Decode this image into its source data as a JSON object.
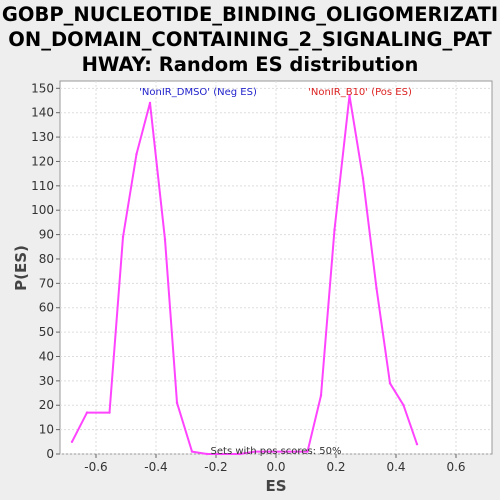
{
  "chart_data": {
    "type": "line",
    "title_lines": [
      "GOBP_NUCLEOTIDE_BINDING_OLIGOMERIZATI",
      "ON_DOMAIN_CONTAINING_2_SIGNALING_PAT",
      "HWAY: Random ES distribution"
    ],
    "xlabel": "ES",
    "ylabel": "P(ES)",
    "xlim": [
      -0.72,
      0.72
    ],
    "ylim": [
      0,
      153
    ],
    "x_ticks": [
      "-0.6",
      "-0.4",
      "-0.2",
      "0.0",
      "0.2",
      "0.4",
      "0.6"
    ],
    "x_tick_values": [
      -0.6,
      -0.4,
      -0.2,
      0.0,
      0.2,
      0.4,
      0.6
    ],
    "y_ticks": [
      "0",
      "10",
      "20",
      "30",
      "40",
      "50",
      "60",
      "70",
      "80",
      "90",
      "100",
      "110",
      "120",
      "130",
      "140",
      "150"
    ],
    "y_tick_values": [
      0,
      10,
      20,
      30,
      40,
      50,
      60,
      70,
      80,
      90,
      100,
      110,
      120,
      130,
      140,
      150
    ],
    "grid": true,
    "series": [
      {
        "color": "#ff44ff",
        "points": [
          [
            -0.68,
            5
          ],
          [
            -0.63,
            17
          ],
          [
            -0.555,
            17
          ],
          [
            -0.51,
            89
          ],
          [
            -0.465,
            123
          ],
          [
            -0.42,
            144
          ],
          [
            -0.37,
            88
          ],
          [
            -0.33,
            21
          ],
          [
            -0.28,
            1
          ],
          [
            -0.23,
            0
          ],
          [
            -0.18,
            0
          ],
          [
            -0.12,
            0
          ],
          [
            -0.07,
            1
          ],
          [
            0.105,
            1
          ],
          [
            0.15,
            24
          ],
          [
            0.195,
            92
          ],
          [
            0.245,
            147
          ],
          [
            0.29,
            113
          ],
          [
            0.335,
            68
          ],
          [
            0.38,
            29
          ],
          [
            0.425,
            20
          ],
          [
            0.47,
            4
          ]
        ]
      }
    ],
    "annotations": {
      "neg": {
        "text": "'NonIR_DMSO' (Neg ES)",
        "color": "#2222cc"
      },
      "pos": {
        "text": "'NonIR_B10' (Pos ES)",
        "color": "#dd2222"
      },
      "footer": {
        "text": "Sets with pos scores: 50%",
        "color": "#333333"
      }
    }
  }
}
